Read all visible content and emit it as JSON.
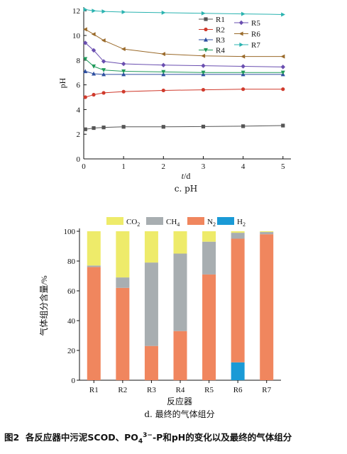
{
  "chart_data": [
    {
      "type": "line",
      "title": "c. pH",
      "xlabel": "t/d",
      "ylabel": "pH",
      "xlim": [
        0,
        5.2
      ],
      "ylim": [
        0,
        12.3
      ],
      "xticks": [
        0,
        1,
        2,
        3,
        4,
        5
      ],
      "yticks": [
        0,
        2,
        4,
        6,
        8,
        10,
        12
      ],
      "legend_position": "top-right",
      "series": [
        {
          "name": "R1",
          "color": "#555555",
          "marker": "square",
          "x": [
            0.04,
            0.25,
            0.5,
            1,
            2,
            3,
            4,
            5
          ],
          "y": [
            2.4,
            2.5,
            2.55,
            2.6,
            2.6,
            2.62,
            2.65,
            2.7
          ]
        },
        {
          "name": "R2",
          "color": "#d03a2c",
          "marker": "circle",
          "x": [
            0.04,
            0.25,
            0.5,
            1,
            2,
            3,
            4,
            5
          ],
          "y": [
            5.0,
            5.2,
            5.35,
            5.45,
            5.55,
            5.6,
            5.65,
            5.65
          ]
        },
        {
          "name": "R3",
          "color": "#2e4fa0",
          "marker": "triangle-up",
          "x": [
            0.04,
            0.25,
            0.5,
            1,
            2,
            3,
            4,
            5
          ],
          "y": [
            7.1,
            6.9,
            6.85,
            6.85,
            6.85,
            6.85,
            6.85,
            6.85
          ]
        },
        {
          "name": "R4",
          "color": "#1f9a5a",
          "marker": "triangle-down",
          "x": [
            0.04,
            0.25,
            0.5,
            1,
            2,
            3,
            4,
            5
          ],
          "y": [
            8.1,
            7.5,
            7.2,
            7.1,
            7.05,
            7.0,
            7.0,
            7.0
          ]
        },
        {
          "name": "R5",
          "color": "#6a4fb0",
          "marker": "diamond",
          "x": [
            0.04,
            0.25,
            0.5,
            1,
            2,
            3,
            4,
            5
          ],
          "y": [
            9.4,
            8.8,
            7.9,
            7.7,
            7.6,
            7.55,
            7.5,
            7.45
          ]
        },
        {
          "name": "R6",
          "color": "#9a6a2a",
          "marker": "triangle-left",
          "x": [
            0.04,
            0.25,
            0.5,
            1,
            2,
            3,
            4,
            5
          ],
          "y": [
            10.5,
            10.1,
            9.6,
            8.9,
            8.5,
            8.35,
            8.3,
            8.3
          ]
        },
        {
          "name": "R7",
          "color": "#2ab3b0",
          "marker": "triangle-right",
          "x": [
            0.04,
            0.25,
            0.5,
            1,
            2,
            3,
            4,
            5
          ],
          "y": [
            12.1,
            12.0,
            11.95,
            11.9,
            11.85,
            11.8,
            11.75,
            11.7
          ]
        }
      ]
    },
    {
      "type": "bar",
      "stacked": true,
      "title": "d. 最终的气体组分",
      "xlabel": "反应器",
      "ylabel": "气体组分含量/%",
      "ylim": [
        0,
        100
      ],
      "yticks": [
        0,
        20,
        40,
        60,
        80,
        100
      ],
      "legend_position": "top",
      "categories": [
        "R1",
        "R2",
        "R3",
        "R4",
        "R5",
        "R6",
        "R7"
      ],
      "series": [
        {
          "name": "H2",
          "label": "H",
          "sub": "2",
          "color": "#1a9ad6",
          "values": [
            0,
            0,
            0,
            0,
            0,
            12,
            0
          ]
        },
        {
          "name": "N2",
          "label": "N",
          "sub": "2",
          "color": "#f0865e",
          "values": [
            76,
            62,
            23,
            33,
            71,
            83,
            98
          ]
        },
        {
          "name": "CH4",
          "label": "CH",
          "sub": "4",
          "color": "#a8aeb1",
          "values": [
            1,
            7,
            56,
            52,
            22,
            4,
            1.5
          ]
        },
        {
          "name": "CO2",
          "label": "CO",
          "sub": "2",
          "color": "#eeeb6a",
          "values": [
            23,
            31,
            21,
            15,
            7,
            1,
            0.5
          ]
        }
      ],
      "legend_order": [
        "CO2",
        "CH4",
        "N2",
        "H2"
      ]
    }
  ],
  "figure_caption": {
    "lead": "图2",
    "text_a": "各反应器中污泥SCOD、PO",
    "sub": "4",
    "sup": "3−",
    "text_b": "-P和pH的变化以及最终的气体组分"
  }
}
